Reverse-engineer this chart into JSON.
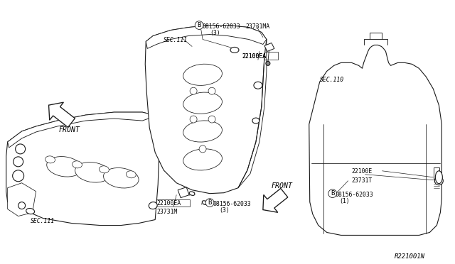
{
  "bg_color": "#ffffff",
  "diagram_id": "R221001N",
  "line_color": "#1a1a1a",
  "line_width": 0.8,
  "text_color": "#000000",
  "font_size": 6.5,
  "labels": {
    "sec111_left": "SEC.111",
    "sec111_center": "SEC.111",
    "sec110_right": "SEC.110",
    "bolt1": "08156-62033",
    "bolt1_qty": "(3)",
    "bolt2": "08156-62033",
    "bolt2_qty": "(3)",
    "bolt3": "08156-62033",
    "bolt3_qty": "(1)",
    "part_ma": "23731MA",
    "part_m": "23731M",
    "part_t": "23731T",
    "sensor_ea1": "22100EA",
    "sensor_ea2": "22100EA",
    "sensor_e": "22100E",
    "front": "FRONT",
    "diagram_ref": "R221001N"
  }
}
